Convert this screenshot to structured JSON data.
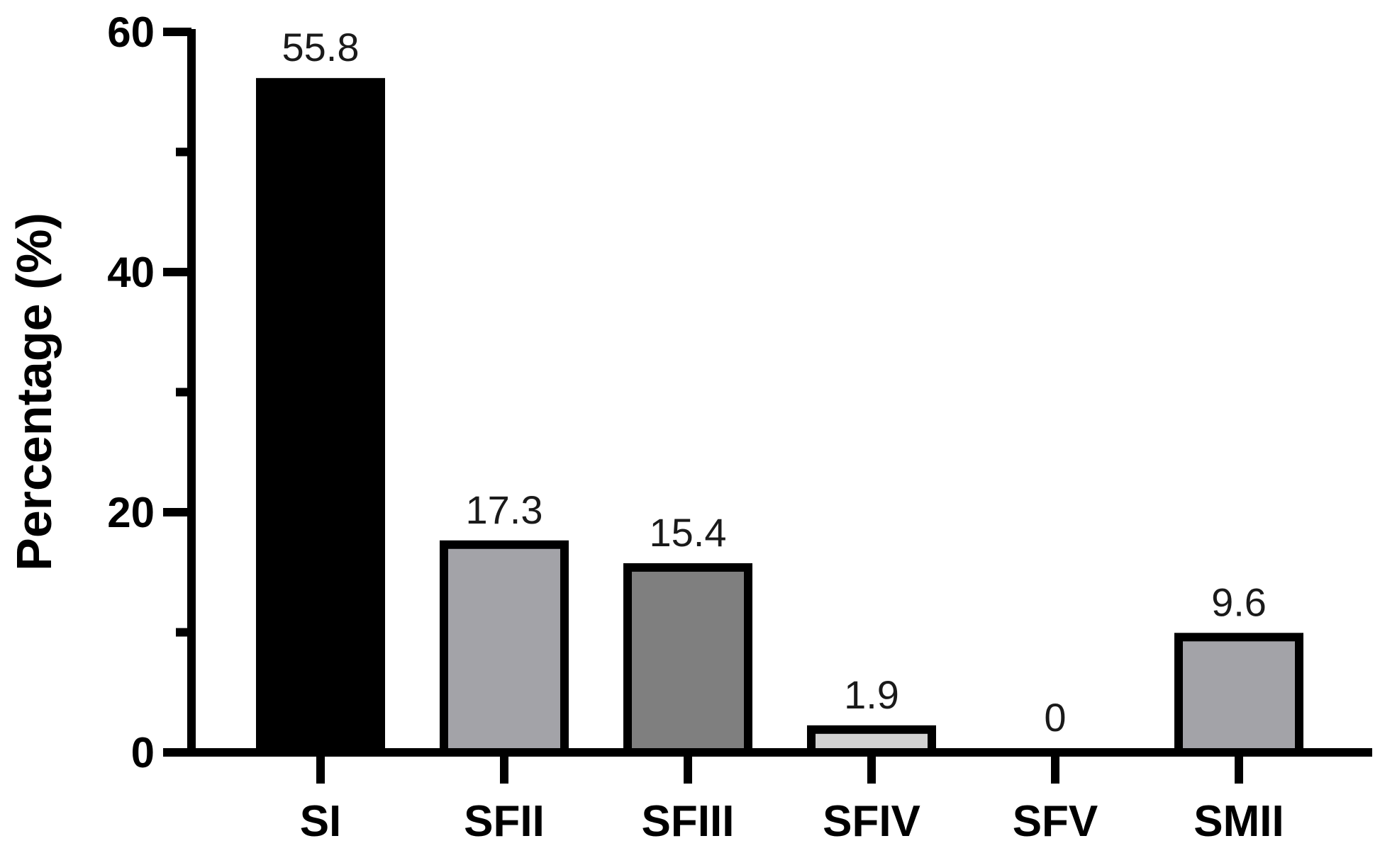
{
  "chart_data": {
    "type": "bar",
    "categories": [
      "SI",
      "SFII",
      "SFIII",
      "SFIV",
      "SFV",
      "SMII"
    ],
    "values": [
      55.8,
      17.3,
      15.4,
      1.9,
      0,
      9.6
    ],
    "data_labels": [
      "55.8",
      "17.3",
      "15.4",
      "1.9",
      "0",
      "9.6"
    ],
    "title": "",
    "xlabel": "",
    "ylabel": "Percentage (%)",
    "ylim": [
      0,
      60
    ],
    "yticks_major": [
      0,
      20,
      40,
      60
    ],
    "yticks_minor": [
      10,
      30,
      50
    ],
    "grid": false,
    "legend": "none",
    "bar_colors": [
      "#000000",
      "#a3a3a8",
      "#7f7f7f",
      "#d2d2d2",
      "#a8a8aa",
      "#a3a3a8"
    ],
    "bar_edge_color": "#000000"
  }
}
